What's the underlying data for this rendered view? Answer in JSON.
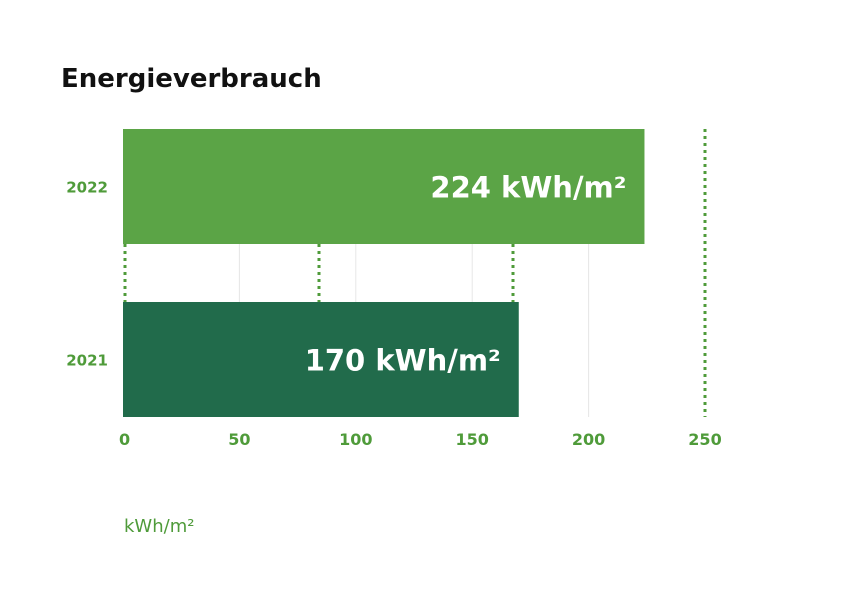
{
  "chart_data": {
    "type": "bar",
    "orientation": "horizontal",
    "title": "Energieverbrauch",
    "categories": [
      "2022",
      "2021"
    ],
    "values": [
      224,
      170
    ],
    "data_labels": [
      "224 kWh/m²",
      "170 kWh/m²"
    ],
    "xlabel": "kWh/m²",
    "xlim": [
      0,
      250
    ],
    "xticks": [
      0,
      50,
      100,
      150,
      200,
      250
    ],
    "grid": true,
    "colors": {
      "bars": [
        "#5ba446",
        "#216b4b"
      ],
      "text_accent": "#4f9b3a",
      "grid": "#e6e6e6",
      "dotted": "#4f9b3a"
    }
  }
}
